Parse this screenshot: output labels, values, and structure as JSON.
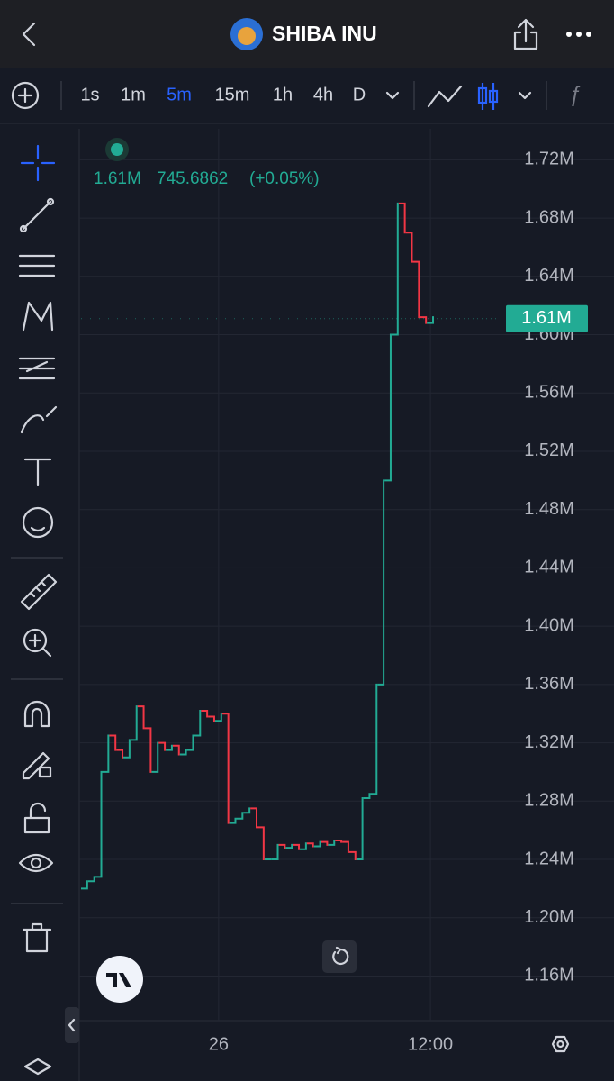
{
  "header": {
    "title": "SHIBA INU"
  },
  "toolbar": {
    "intervals": [
      "1s",
      "1m",
      "5m",
      "15m",
      "1h",
      "4h",
      "D"
    ],
    "active_interval": 2
  },
  "chart_data": {
    "type": "candlestick",
    "legend": {
      "price": "1.61M",
      "volume": "745.6862",
      "change": "(+0.05%)"
    },
    "categories": [
      null,
      null,
      null,
      null,
      null,
      null,
      null,
      null,
      null,
      null,
      null,
      null,
      null,
      null,
      null,
      null,
      null,
      null,
      null,
      "26",
      null,
      null,
      null,
      null,
      null,
      null,
      null,
      null,
      null,
      null,
      null,
      null,
      null,
      null,
      null,
      null,
      null,
      null,
      null,
      null,
      null,
      null,
      null,
      null,
      null,
      null,
      null,
      null,
      null,
      "12:00"
    ],
    "open": [
      1.22,
      1.225,
      1.228,
      1.3,
      1.325,
      1.315,
      1.31,
      1.322,
      1.345,
      1.33,
      1.3,
      1.32,
      1.315,
      1.318,
      1.312,
      1.315,
      1.325,
      1.342,
      1.338,
      1.335,
      1.34,
      1.265,
      1.268,
      1.272,
      1.275,
      1.262,
      1.24,
      1.24,
      1.25,
      1.248,
      1.25,
      1.247,
      1.251,
      1.249,
      1.252,
      1.25,
      1.253,
      1.252,
      1.245,
      1.24,
      1.282,
      1.285,
      1.36,
      1.5,
      1.6,
      1.69,
      1.67,
      1.65,
      1.612,
      1.608
    ],
    "close": [
      1.225,
      1.228,
      1.3,
      1.325,
      1.315,
      1.31,
      1.322,
      1.345,
      1.33,
      1.3,
      1.32,
      1.315,
      1.318,
      1.312,
      1.315,
      1.325,
      1.342,
      1.338,
      1.335,
      1.34,
      1.265,
      1.268,
      1.272,
      1.275,
      1.262,
      1.24,
      1.24,
      1.25,
      1.248,
      1.25,
      1.247,
      1.251,
      1.249,
      1.252,
      1.25,
      1.253,
      1.252,
      1.245,
      1.24,
      1.282,
      1.285,
      1.36,
      1.5,
      1.6,
      1.69,
      1.67,
      1.65,
      1.612,
      1.608,
      1.612
    ],
    "up_color": "#22ab94",
    "down_color": "#f23645",
    "ylim": [
      1.13,
      1.74
    ],
    "yticks": [
      {
        "value": 1.16,
        "label": "1.16M"
      },
      {
        "value": 1.2,
        "label": "1.20M"
      },
      {
        "value": 1.24,
        "label": "1.24M"
      },
      {
        "value": 1.28,
        "label": "1.28M"
      },
      {
        "value": 1.32,
        "label": "1.32M"
      },
      {
        "value": 1.36,
        "label": "1.36M"
      },
      {
        "value": 1.4,
        "label": "1.40M"
      },
      {
        "value": 1.44,
        "label": "1.44M"
      },
      {
        "value": 1.48,
        "label": "1.48M"
      },
      {
        "value": 1.52,
        "label": "1.52M"
      },
      {
        "value": 1.56,
        "label": "1.56M"
      },
      {
        "value": 1.6,
        "label": "1.60M"
      },
      {
        "value": 1.64,
        "label": "1.64M"
      },
      {
        "value": 1.68,
        "label": "1.68M"
      },
      {
        "value": 1.72,
        "label": "1.72M"
      }
    ],
    "last_price": {
      "value": 1.611,
      "label": "1.61M"
    },
    "grid": true
  }
}
